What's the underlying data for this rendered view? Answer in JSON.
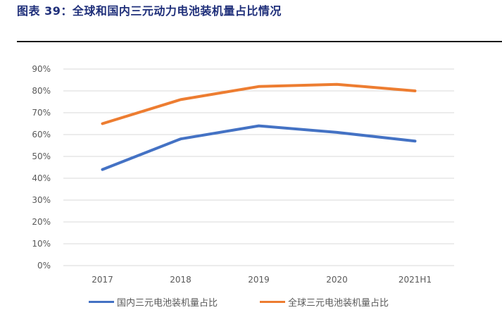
{
  "figure": {
    "title": "图表 39：全球和国内三元动力电池装机量占比情况"
  },
  "colors": {
    "title": "#1f2f7a",
    "series_domestic": "#4472c4",
    "series_global": "#ed7d31",
    "grid": "#d9d9d9",
    "tick_text": "#595959"
  },
  "chart_data": {
    "type": "line",
    "title": "",
    "xlabel": "",
    "ylabel": "",
    "categories": [
      "2017",
      "2018",
      "2019",
      "2020",
      "2021H1"
    ],
    "y_ticks": [
      "0%",
      "10%",
      "20%",
      "30%",
      "40%",
      "50%",
      "60%",
      "70%",
      "80%",
      "90%"
    ],
    "ylim": [
      0,
      90
    ],
    "grid": true,
    "legend_position": "bottom",
    "series": [
      {
        "name": "国内三元电池装机量占比",
        "values": [
          44,
          58,
          64,
          61,
          57
        ]
      },
      {
        "name": "全球三元电池装机量占比",
        "values": [
          65,
          76,
          82,
          83,
          80
        ]
      }
    ]
  }
}
